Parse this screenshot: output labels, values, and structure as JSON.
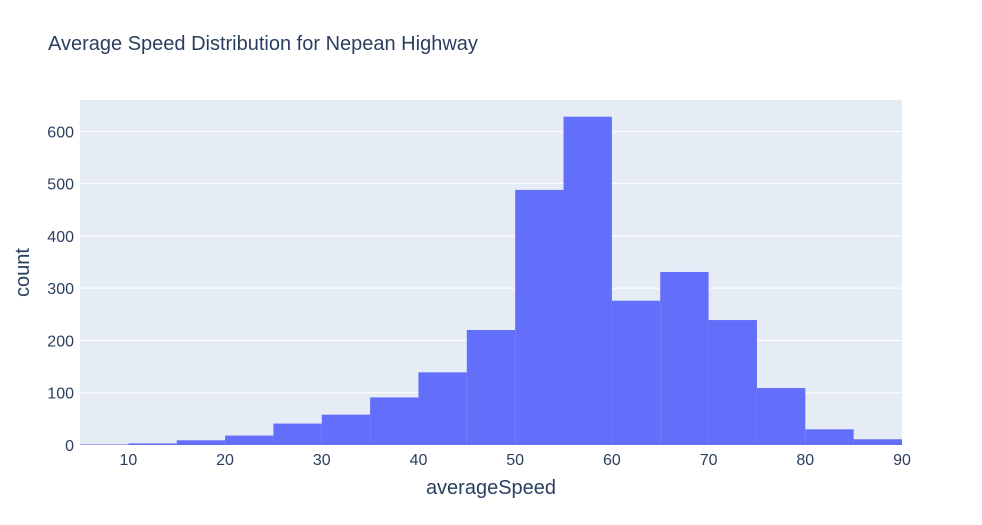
{
  "chart_data": {
    "type": "bar",
    "title": "Average Speed Distribution for Nepean Highway",
    "xlabel": "averageSpeed",
    "ylabel": "count",
    "xlim": [
      5,
      90
    ],
    "ylim": [
      0,
      660
    ],
    "x_ticks": [
      10,
      20,
      30,
      40,
      50,
      60,
      70,
      80,
      90
    ],
    "y_ticks": [
      0,
      100,
      200,
      300,
      400,
      500,
      600
    ],
    "bin_width": 5,
    "bins": [
      {
        "start": 5,
        "end": 10,
        "count": 1
      },
      {
        "start": 10,
        "end": 15,
        "count": 3
      },
      {
        "start": 15,
        "end": 20,
        "count": 9
      },
      {
        "start": 20,
        "end": 25,
        "count": 18
      },
      {
        "start": 25,
        "end": 30,
        "count": 41
      },
      {
        "start": 30,
        "end": 35,
        "count": 58
      },
      {
        "start": 35,
        "end": 40,
        "count": 91
      },
      {
        "start": 40,
        "end": 45,
        "count": 139
      },
      {
        "start": 45,
        "end": 50,
        "count": 220
      },
      {
        "start": 50,
        "end": 55,
        "count": 488
      },
      {
        "start": 55,
        "end": 60,
        "count": 628
      },
      {
        "start": 60,
        "end": 65,
        "count": 276
      },
      {
        "start": 65,
        "end": 70,
        "count": 331
      },
      {
        "start": 70,
        "end": 75,
        "count": 239
      },
      {
        "start": 75,
        "end": 80,
        "count": 109
      },
      {
        "start": 80,
        "end": 85,
        "count": 30
      },
      {
        "start": 85,
        "end": 90,
        "count": 11
      }
    ],
    "grid": true,
    "colors": {
      "bar": "#636efa",
      "plot_bg": "#e5ecf6",
      "grid": "#ffffff",
      "text": "#2a3f5f"
    }
  }
}
